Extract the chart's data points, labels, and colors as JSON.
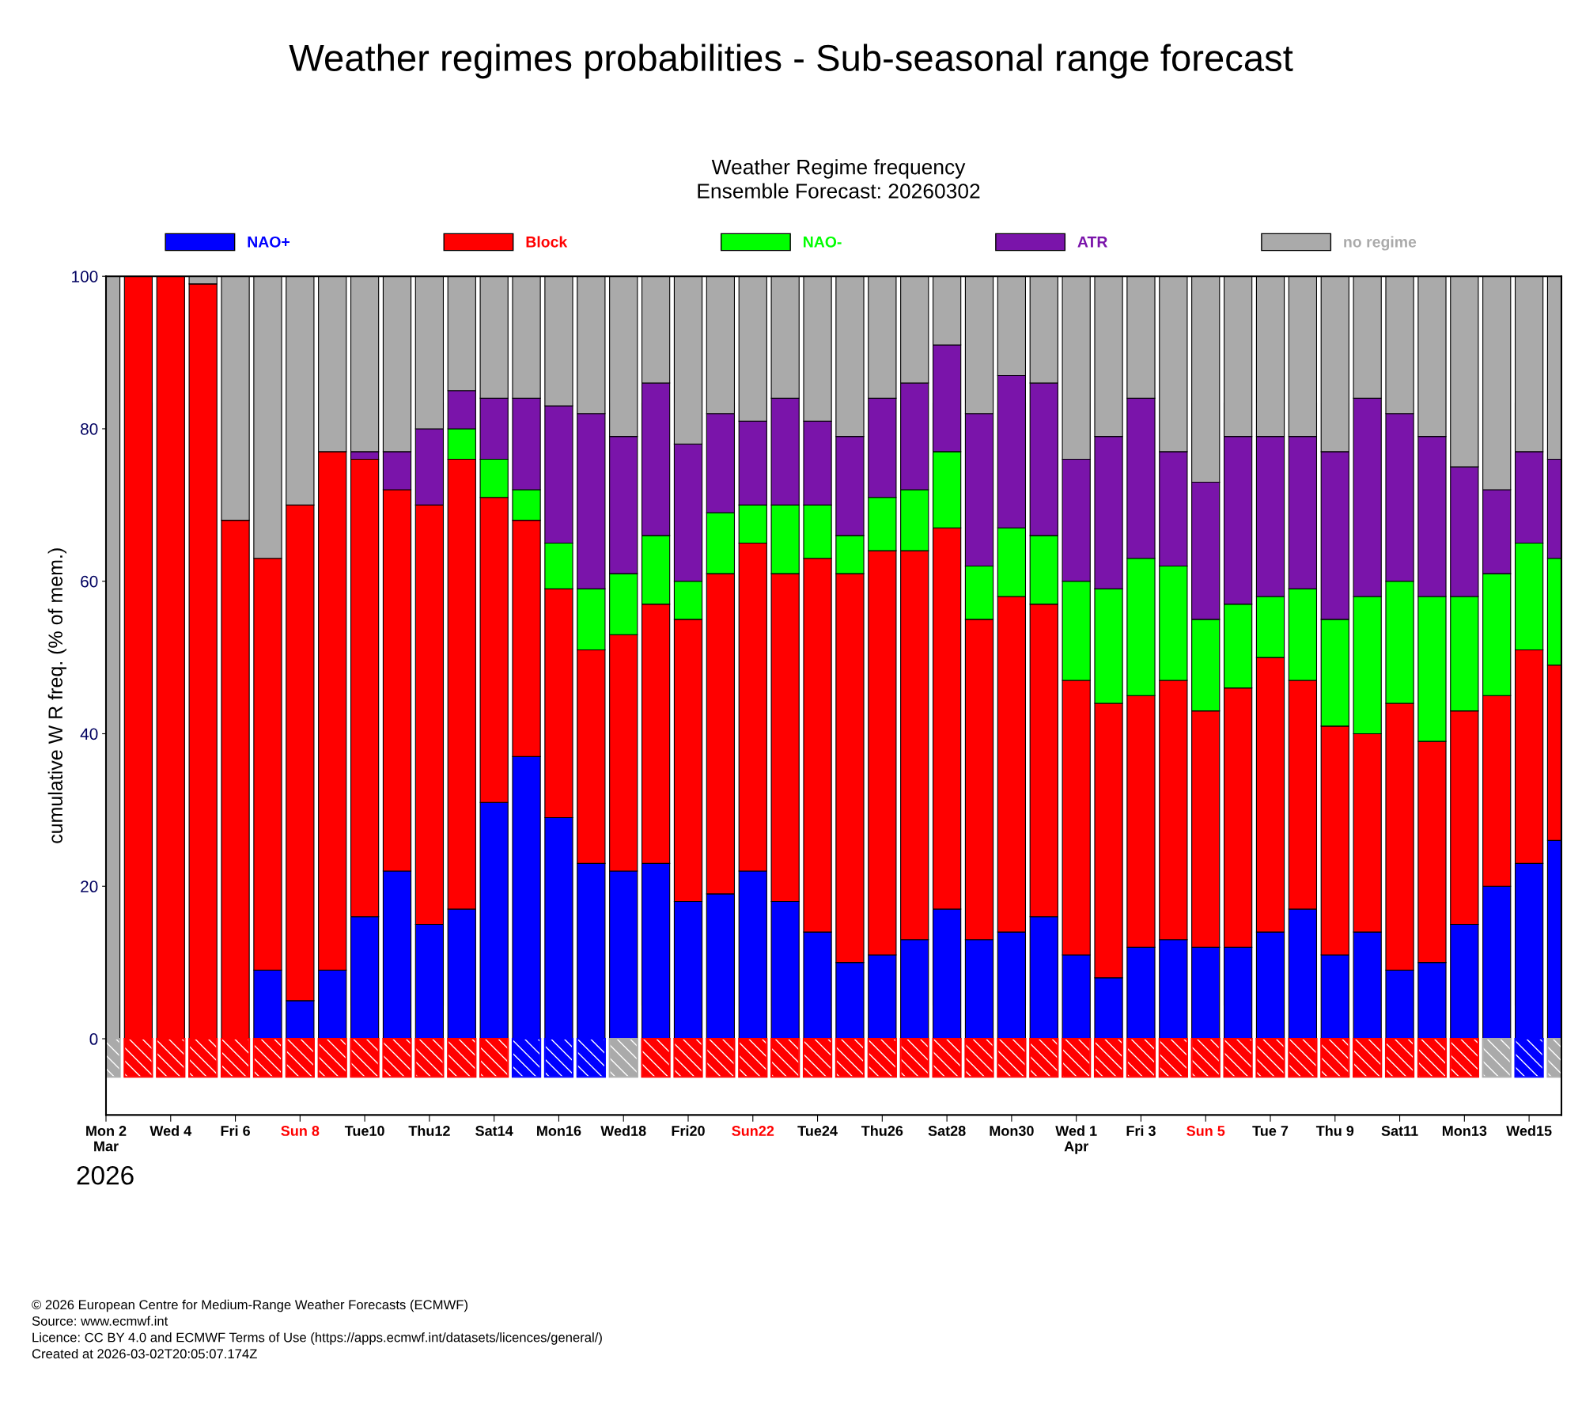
{
  "chart_data": {
    "type": "bar",
    "stacked": true,
    "title": "Weather regimes probabilities - Sub-seasonal range forecast",
    "subtitle": "Weather Regime frequency\nEnsemble Forecast: 20260302",
    "xlabel": "2026",
    "ylabel": "cumulative W R freq. (% of mem.)",
    "x": [
      "2026-03-02",
      "2026-03-03",
      "2026-03-04",
      "2026-03-05",
      "2026-03-06",
      "2026-03-07",
      "2026-03-08",
      "2026-03-09",
      "2026-03-10",
      "2026-03-11",
      "2026-03-12",
      "2026-03-13",
      "2026-03-14",
      "2026-03-15",
      "2026-03-16",
      "2026-03-17",
      "2026-03-18",
      "2026-03-19",
      "2026-03-20",
      "2026-03-21",
      "2026-03-22",
      "2026-03-23",
      "2026-03-24",
      "2026-03-25",
      "2026-03-26",
      "2026-03-27",
      "2026-03-28",
      "2026-03-29",
      "2026-03-30",
      "2026-03-31",
      "2026-04-01",
      "2026-04-02",
      "2026-04-03",
      "2026-04-04",
      "2026-04-05",
      "2026-04-06",
      "2026-04-07",
      "2026-04-08",
      "2026-04-09",
      "2026-04-10",
      "2026-04-11",
      "2026-04-12",
      "2026-04-13",
      "2026-04-14",
      "2026-04-15",
      "2026-04-16"
    ],
    "series": [
      {
        "name": "NAO+",
        "color": "#0000ff",
        "values": [
          0,
          0,
          0,
          0,
          0,
          9,
          5,
          9,
          16,
          22,
          15,
          17,
          31,
          37,
          29,
          23,
          22,
          23,
          18,
          19,
          22,
          18,
          14,
          10,
          11,
          13,
          17,
          13,
          14,
          16,
          11,
          8,
          12,
          13,
          12,
          12,
          14,
          17,
          11,
          14,
          9,
          10,
          15,
          20,
          23,
          26
        ]
      },
      {
        "name": "Block",
        "color": "#ff0000",
        "values": [
          0,
          100,
          100,
          99,
          68,
          54,
          65,
          68,
          60,
          50,
          55,
          59,
          40,
          31,
          30,
          28,
          31,
          34,
          37,
          42,
          43,
          43,
          49,
          51,
          53,
          51,
          50,
          42,
          44,
          41,
          36,
          36,
          33,
          34,
          31,
          34,
          36,
          30,
          30,
          26,
          35,
          29,
          28,
          25,
          28,
          23
        ]
      },
      {
        "name": "NAO-",
        "color": "#00ff00",
        "values": [
          0,
          0,
          0,
          0,
          0,
          0,
          0,
          0,
          0,
          0,
          0,
          4,
          5,
          4,
          6,
          8,
          8,
          9,
          5,
          8,
          5,
          9,
          7,
          5,
          7,
          8,
          10,
          7,
          9,
          9,
          13,
          15,
          18,
          15,
          12,
          11,
          8,
          12,
          14,
          18,
          16,
          19,
          15,
          16,
          14,
          14
        ]
      },
      {
        "name": "ATR",
        "color": "#7a14aa",
        "values": [
          0,
          0,
          0,
          0,
          0,
          0,
          0,
          0,
          1,
          5,
          10,
          5,
          8,
          12,
          18,
          23,
          18,
          20,
          18,
          13,
          11,
          14,
          11,
          13,
          13,
          14,
          14,
          20,
          20,
          20,
          16,
          20,
          21,
          15,
          18,
          22,
          21,
          20,
          22,
          26,
          22,
          21,
          17,
          11,
          12,
          13
        ]
      },
      {
        "name": "no regime",
        "color": "#aaaaaa",
        "values": [
          100,
          0,
          0,
          1,
          32,
          37,
          30,
          23,
          23,
          23,
          20,
          15,
          16,
          16,
          17,
          18,
          21,
          14,
          22,
          18,
          19,
          16,
          19,
          21,
          16,
          14,
          9,
          18,
          13,
          14,
          24,
          21,
          16,
          23,
          27,
          21,
          21,
          21,
          23,
          16,
          18,
          21,
          25,
          28,
          23,
          24
        ]
      },
      {
        "values": [
          -5,
          -5,
          -5,
          -5,
          -5,
          -5,
          -5,
          -5,
          -5,
          -5,
          -5,
          -5,
          -5,
          -5,
          -5,
          -5,
          -5,
          -5,
          -5,
          -5,
          -5,
          -5,
          -5,
          -5,
          -5,
          -5,
          -5,
          -5,
          -5,
          -5,
          -5,
          -5,
          -5,
          -5,
          -5,
          -5,
          -5,
          -5,
          -5,
          -5,
          -5,
          -5,
          -5,
          -5,
          -5,
          -5
        ],
        "colors": [
          "#aaaaaa",
          "#ff0000",
          "#ff0000",
          "#ff0000",
          "#ff0000",
          "#ff0000",
          "#ff0000",
          "#ff0000",
          "#ff0000",
          "#ff0000",
          "#ff0000",
          "#ff0000",
          "#ff0000",
          "#0000ff",
          "#0000ff",
          "#0000ff",
          "#aaaaaa",
          "#ff0000",
          "#ff0000",
          "#ff0000",
          "#ff0000",
          "#ff0000",
          "#ff0000",
          "#ff0000",
          "#ff0000",
          "#ff0000",
          "#ff0000",
          "#ff0000",
          "#ff0000",
          "#ff0000",
          "#ff0000",
          "#ff0000",
          "#ff0000",
          "#ff0000",
          "#ff0000",
          "#ff0000",
          "#ff0000",
          "#ff0000",
          "#ff0000",
          "#ff0000",
          "#ff0000",
          "#ff0000",
          "#ff0000",
          "#aaaaaa",
          "#0000ff",
          "#aaaaaa"
        ]
      }
    ],
    "xlim": [
      "2026-03-02",
      "2026-04-16"
    ],
    "xticks": [
      {
        "value": "2026-03-02",
        "label": "Mon 2\nMar"
      },
      {
        "value": "2026-03-04",
        "label": "Wed 4"
      },
      {
        "value": "2026-03-06",
        "label": "Fri 6"
      },
      {
        "value": "2026-03-08",
        "label": "Sun 8"
      },
      {
        "value": "2026-03-10",
        "label": "Tue10"
      },
      {
        "value": "2026-03-12",
        "label": "Thu12"
      },
      {
        "value": "2026-03-14",
        "label": "Sat14"
      },
      {
        "value": "2026-03-16",
        "label": "Mon16"
      },
      {
        "value": "2026-03-18",
        "label": "Wed18"
      },
      {
        "value": "2026-03-20",
        "label": "Fri20"
      },
      {
        "value": "2026-03-22",
        "label": "Sun22"
      },
      {
        "value": "2026-03-24",
        "label": "Tue24"
      },
      {
        "value": "2026-03-26",
        "label": "Thu26"
      },
      {
        "value": "2026-03-28",
        "label": "Sat28"
      },
      {
        "value": "2026-03-30",
        "label": "Mon30"
      },
      {
        "value": "2026-04-01",
        "label": "Wed 1\nApr"
      },
      {
        "value": "2026-04-03",
        "label": "Fri 3"
      },
      {
        "value": "2026-04-05",
        "label": "Sun 5"
      },
      {
        "value": "2026-04-07",
        "label": "Tue 7"
      },
      {
        "value": "2026-04-09",
        "label": "Thu 9"
      },
      {
        "value": "2026-04-11",
        "label": "Sat11"
      },
      {
        "value": "2026-04-13",
        "label": "Mon13"
      },
      {
        "value": "2026-04-15",
        "label": "Wed15"
      }
    ],
    "ylim": [
      -10,
      100
    ],
    "yticks": [
      0,
      20,
      40,
      60,
      80,
      100
    ],
    "grid": false,
    "legend": "top",
    "annotations": [
      "© 2026 European Centre for Medium-Range Weather Forecasts (ECMWF)",
      "Source: www.ecmwf.int",
      "Licence: CC BY 4.0 and ECMWF Terms of Use (https://apps.ecmwf.int/datasets/licences/general/)",
      "Created at 2026-03-02T20:05:07.174Z"
    ]
  }
}
